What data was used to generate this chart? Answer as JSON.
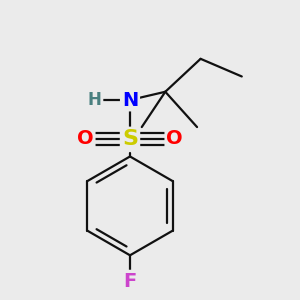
{
  "background_color": "#ebebeb",
  "atom_colors": {
    "S": "#cccc00",
    "O": "#ff0000",
    "N": "#0000ff",
    "H": "#4a8080",
    "F": "#cc44cc",
    "C": "#111111"
  },
  "bond_color": "#111111",
  "bond_lw": 1.6,
  "font_size": 13,
  "figsize": [
    3.0,
    3.0
  ],
  "dpi": 100
}
